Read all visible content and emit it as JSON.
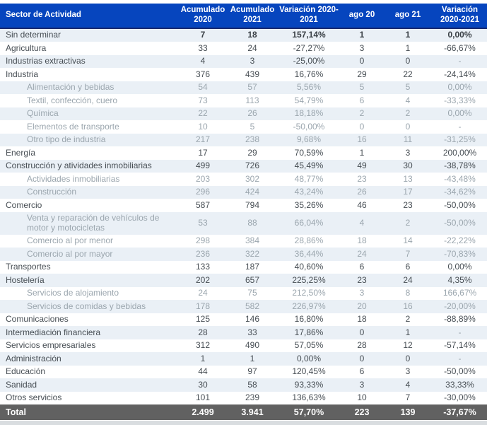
{
  "colors": {
    "header_bg": "#0645BE",
    "header_border": "#17286F",
    "header_text": "#FFFFFF",
    "row_alt_bg": "#EAF0F6",
    "row_text": "#474E54",
    "subrow_text": "#9BA6AE",
    "total_bg": "#616161",
    "total_text": "#FFFFFF",
    "footer_strip": "#D9DDE0"
  },
  "chart_data": {
    "type": "table",
    "title": "",
    "columns": [
      {
        "label": "Sector de Actividad",
        "align": "left"
      },
      {
        "label": "Acumulado 2020",
        "align": "center"
      },
      {
        "label": "Acumulado 2021",
        "align": "center"
      },
      {
        "label": "Variación 2020-2021",
        "align": "center"
      },
      {
        "label": "ago 20",
        "align": "center"
      },
      {
        "label": "ago 21",
        "align": "center"
      },
      {
        "label": "Variación 2020-2021",
        "align": "center"
      }
    ],
    "rows": [
      {
        "label": "Sin determinar",
        "indent": false,
        "emphasis": true,
        "values": [
          "7",
          "18",
          "157,14%",
          "1",
          "1",
          "0,00%"
        ]
      },
      {
        "label": "Agricultura",
        "indent": false,
        "emphasis": false,
        "values": [
          "33",
          "24",
          "-27,27%",
          "3",
          "1",
          "-66,67%"
        ]
      },
      {
        "label": "Industrias extractivas",
        "indent": false,
        "emphasis": false,
        "values": [
          "4",
          "3",
          "-25,00%",
          "0",
          "0",
          "-"
        ]
      },
      {
        "label": "Industria",
        "indent": false,
        "emphasis": false,
        "values": [
          "376",
          "439",
          "16,76%",
          "29",
          "22",
          "-24,14%"
        ]
      },
      {
        "label": "Alimentación y bebidas",
        "indent": true,
        "emphasis": false,
        "values": [
          "54",
          "57",
          "5,56%",
          "5",
          "5",
          "0,00%"
        ]
      },
      {
        "label": "Textil, confección, cuero",
        "indent": true,
        "emphasis": false,
        "values": [
          "73",
          "113",
          "54,79%",
          "6",
          "4",
          "-33,33%"
        ]
      },
      {
        "label": "Química",
        "indent": true,
        "emphasis": false,
        "values": [
          "22",
          "26",
          "18,18%",
          "2",
          "2",
          "0,00%"
        ]
      },
      {
        "label": "Elementos de transporte",
        "indent": true,
        "emphasis": false,
        "values": [
          "10",
          "5",
          "-50,00%",
          "0",
          "0",
          "-"
        ]
      },
      {
        "label": "Otro tipo de industria",
        "indent": true,
        "emphasis": false,
        "values": [
          "217",
          "238",
          "9,68%",
          "16",
          "11",
          "-31,25%"
        ]
      },
      {
        "label": "Energía",
        "indent": false,
        "emphasis": false,
        "values": [
          "17",
          "29",
          "70,59%",
          "1",
          "3",
          "200,00%"
        ]
      },
      {
        "label": "Construcción y atividades inmobiliarias",
        "indent": false,
        "emphasis": false,
        "values": [
          "499",
          "726",
          "45,49%",
          "49",
          "30",
          "-38,78%"
        ]
      },
      {
        "label": "Actividades inmobiliarias",
        "indent": true,
        "emphasis": false,
        "values": [
          "203",
          "302",
          "48,77%",
          "23",
          "13",
          "-43,48%"
        ]
      },
      {
        "label": "Construcción",
        "indent": true,
        "emphasis": false,
        "values": [
          "296",
          "424",
          "43,24%",
          "26",
          "17",
          "-34,62%"
        ]
      },
      {
        "label": "Comercio",
        "indent": false,
        "emphasis": false,
        "values": [
          "587",
          "794",
          "35,26%",
          "46",
          "23",
          "-50,00%"
        ]
      },
      {
        "label": "Venta y reparación de vehículos de motor y motocicletas",
        "indent": true,
        "emphasis": false,
        "values": [
          "53",
          "88",
          "66,04%",
          "4",
          "2",
          "-50,00%"
        ]
      },
      {
        "label": "Comercio al por menor",
        "indent": true,
        "emphasis": false,
        "values": [
          "298",
          "384",
          "28,86%",
          "18",
          "14",
          "-22,22%"
        ]
      },
      {
        "label": "Comercio al por mayor",
        "indent": true,
        "emphasis": false,
        "values": [
          "236",
          "322",
          "36,44%",
          "24",
          "7",
          "-70,83%"
        ]
      },
      {
        "label": "Transportes",
        "indent": false,
        "emphasis": false,
        "values": [
          "133",
          "187",
          "40,60%",
          "6",
          "6",
          "0,00%"
        ]
      },
      {
        "label": "Hostelería",
        "indent": false,
        "emphasis": false,
        "values": [
          "202",
          "657",
          "225,25%",
          "23",
          "24",
          "4,35%"
        ]
      },
      {
        "label": "Servicios de alojamiento",
        "indent": true,
        "emphasis": false,
        "values": [
          "24",
          "75",
          "212,50%",
          "3",
          "8",
          "166,67%"
        ]
      },
      {
        "label": "Servicios de comidas y bebidas",
        "indent": true,
        "emphasis": false,
        "values": [
          "178",
          "582",
          "226,97%",
          "20",
          "16",
          "-20,00%"
        ]
      },
      {
        "label": "Comunicaciones",
        "indent": false,
        "emphasis": false,
        "values": [
          "125",
          "146",
          "16,80%",
          "18",
          "2",
          "-88,89%"
        ]
      },
      {
        "label": "Intermediación financiera",
        "indent": false,
        "emphasis": false,
        "values": [
          "28",
          "33",
          "17,86%",
          "0",
          "1",
          "-"
        ]
      },
      {
        "label": "Servicios empresariales",
        "indent": false,
        "emphasis": false,
        "values": [
          "312",
          "490",
          "57,05%",
          "28",
          "12",
          "-57,14%"
        ]
      },
      {
        "label": "Administración",
        "indent": false,
        "emphasis": false,
        "values": [
          "1",
          "1",
          "0,00%",
          "0",
          "0",
          "-"
        ]
      },
      {
        "label": "Educación",
        "indent": false,
        "emphasis": false,
        "values": [
          "44",
          "97",
          "120,45%",
          "6",
          "3",
          "-50,00%"
        ]
      },
      {
        "label": "Sanidad",
        "indent": false,
        "emphasis": false,
        "values": [
          "30",
          "58",
          "93,33%",
          "3",
          "4",
          "33,33%"
        ]
      },
      {
        "label": "Otros servicios",
        "indent": false,
        "emphasis": false,
        "values": [
          "101",
          "239",
          "136,63%",
          "10",
          "7",
          "-30,00%"
        ]
      }
    ],
    "total": {
      "label": "Total",
      "values": [
        "2.499",
        "3.941",
        "57,70%",
        "223",
        "139",
        "-37,67%"
      ]
    },
    "layout": {
      "alternating_rows": true,
      "first_data_row_shaded": true
    }
  }
}
